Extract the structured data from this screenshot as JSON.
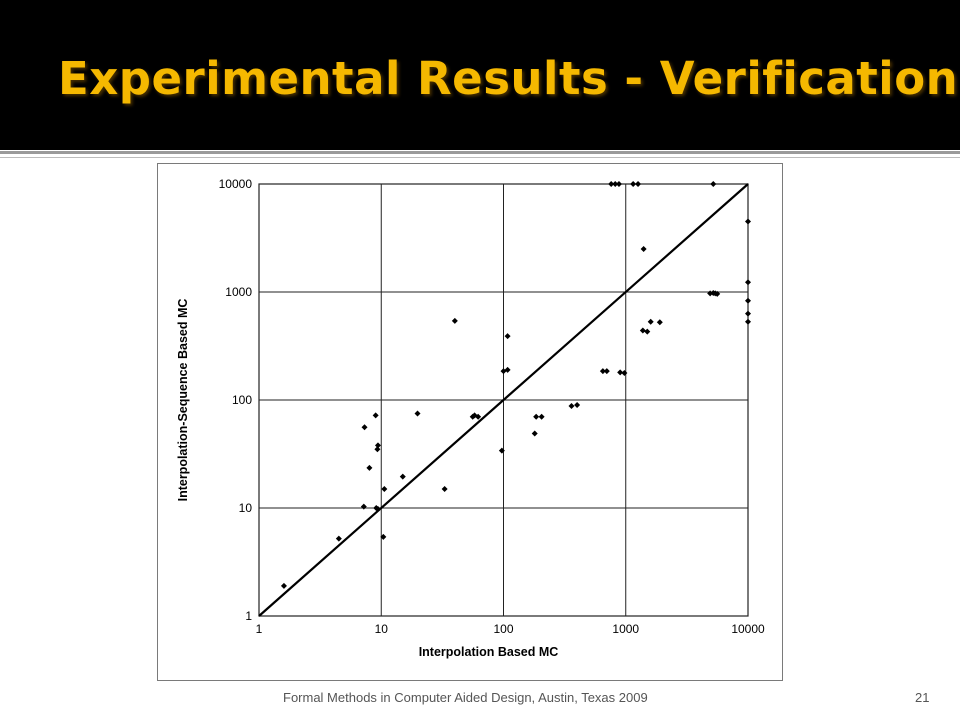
{
  "slide": {
    "title": "Experimental Results - Verification",
    "footer": "Formal Methods in Computer Aided Design, Austin, Texas 2009",
    "page_number": "21",
    "colors": {
      "title": "#f5b800",
      "title_bar": "#000000",
      "plot_markers": "#000000"
    }
  },
  "chart_data": {
    "type": "scatter",
    "title": "",
    "xlabel": "Interpolation Based MC",
    "ylabel": "Interpolation-Sequence Based MC",
    "x_scale": "log",
    "y_scale": "log",
    "xlim": [
      1,
      10000
    ],
    "ylim": [
      1,
      10000
    ],
    "x_ticks": [
      "1",
      "10",
      "100",
      "1000",
      "10000"
    ],
    "y_ticks": [
      "1",
      "10",
      "100",
      "1000",
      "10000"
    ],
    "grid": true,
    "legend": "none",
    "reference_line": {
      "type": "diagonal",
      "from": [
        1,
        1
      ],
      "to": [
        10000,
        10000
      ]
    },
    "series": [
      {
        "points": [
          [
            1.6,
            1.9
          ],
          [
            4.5,
            5.2
          ],
          [
            7.2,
            10.3
          ],
          [
            9.1,
            10
          ],
          [
            9.4,
            9.8
          ],
          [
            10.4,
            5.4
          ],
          [
            10.6,
            15
          ],
          [
            15,
            19.5
          ],
          [
            7.3,
            56
          ],
          [
            8,
            23.5
          ],
          [
            9,
            72
          ],
          [
            9.3,
            35
          ],
          [
            9.4,
            38
          ],
          [
            19.8,
            75
          ],
          [
            33,
            15
          ],
          [
            40,
            540
          ],
          [
            56,
            70
          ],
          [
            58,
            72
          ],
          [
            62,
            70
          ],
          [
            97,
            34
          ],
          [
            100,
            185
          ],
          [
            108,
            390
          ],
          [
            108,
            190
          ],
          [
            180,
            49
          ],
          [
            185,
            70
          ],
          [
            205,
            70
          ],
          [
            360,
            88
          ],
          [
            400,
            90
          ],
          [
            650,
            185
          ],
          [
            700,
            185
          ],
          [
            760,
            10000
          ],
          [
            820,
            10000
          ],
          [
            880,
            10000
          ],
          [
            900,
            180
          ],
          [
            975,
            178
          ],
          [
            1150,
            10000
          ],
          [
            1260,
            10000
          ],
          [
            1400,
            2500
          ],
          [
            1380,
            440
          ],
          [
            1500,
            430
          ],
          [
            1600,
            530
          ],
          [
            1900,
            525
          ],
          [
            4900,
            970
          ],
          [
            5200,
            980
          ],
          [
            5400,
            970
          ],
          [
            5600,
            960
          ],
          [
            5200,
            10000
          ],
          [
            10000,
            4500
          ],
          [
            10000,
            1230
          ],
          [
            10000,
            830
          ],
          [
            10000,
            630
          ],
          [
            10000,
            530
          ]
        ]
      }
    ]
  }
}
